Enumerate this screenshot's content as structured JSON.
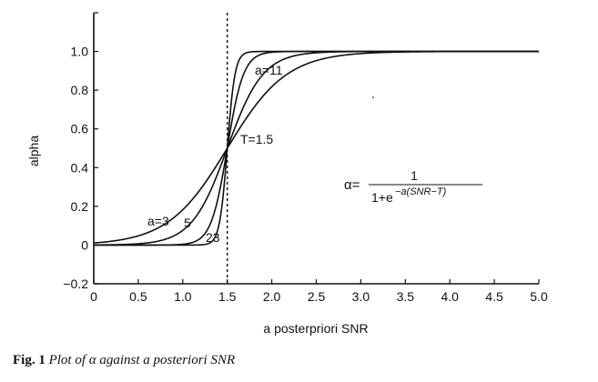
{
  "chart_data": {
    "type": "line",
    "title": "",
    "xlabel": "a posterpriori SNR",
    "ylabel": "alpha",
    "xlim": [
      0,
      5.0
    ],
    "ylim": [
      -0.2,
      1.2
    ],
    "x_ticks": [
      "0",
      "0.5",
      "1.0",
      "1.5",
      "2.0",
      "2.5",
      "3.0",
      "3.5",
      "4.0",
      "4.5",
      "5.0"
    ],
    "y_ticks": [
      "−0.2",
      "0",
      "0.2",
      "0.4",
      "0.6",
      "0.8",
      "1.0"
    ],
    "x_tick_values": [
      0,
      0.5,
      1.0,
      1.5,
      2.0,
      2.5,
      3.0,
      3.5,
      4.0,
      4.5,
      5.0
    ],
    "y_tick_values": [
      -0.2,
      0,
      0.2,
      0.4,
      0.6,
      0.8,
      1.0
    ],
    "threshold": 1.5,
    "series_a_values": [
      3,
      5,
      11,
      23
    ],
    "grid": false,
    "legend": "none",
    "line_color": "#111111",
    "annotations": {
      "a3": "a=3",
      "a5": "5",
      "a11": "a=11",
      "a23": "23",
      "T": "T=1.5"
    },
    "formula": {
      "lhs": "α=",
      "numerator": "1",
      "denominator_base": "1+e",
      "exponent": "−a(SNR−T)"
    }
  },
  "caption": {
    "fig_num": "Fig. 1",
    "text": "Plot of α against a posteriori SNR"
  }
}
